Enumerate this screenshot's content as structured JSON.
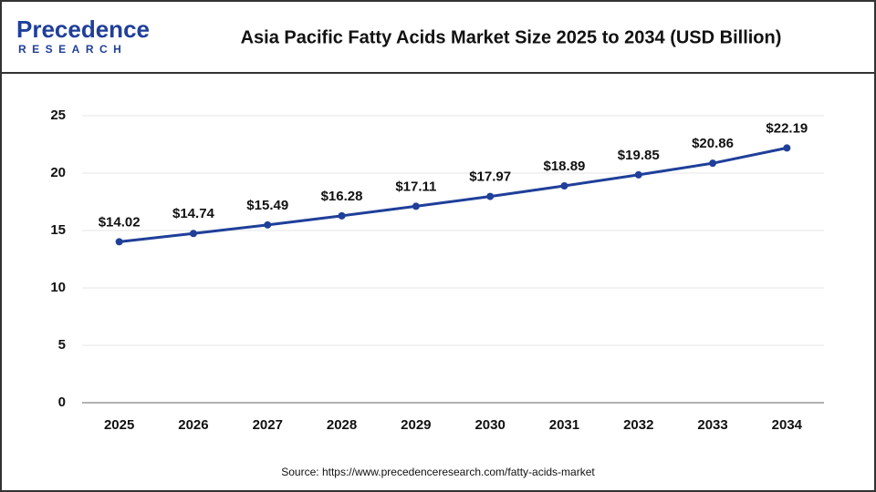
{
  "logo": {
    "name": "Precedence",
    "tagline": "RESEARCH"
  },
  "chart_data": {
    "type": "line",
    "title": "Asia Pacific Fatty Acids Market Size 2025 to 2034 (USD Billion)",
    "source": "Source: https://www.precedenceresearch.com/fatty-acids-market",
    "categories": [
      "2025",
      "2026",
      "2027",
      "2028",
      "2029",
      "2030",
      "2031",
      "2032",
      "2033",
      "2034"
    ],
    "values": [
      14.02,
      14.74,
      15.49,
      16.28,
      17.11,
      17.97,
      18.89,
      19.85,
      20.86,
      22.19
    ],
    "value_labels": [
      "$14.02",
      "$14.74",
      "$15.49",
      "$16.28",
      "$17.11",
      "$17.97",
      "$18.89",
      "$19.85",
      "$20.86",
      "$22.19"
    ],
    "color": "#1f3f99",
    "ylim": [
      0,
      25
    ],
    "yticks": [
      0,
      5,
      10,
      15,
      20,
      25
    ],
    "grid": true
  }
}
